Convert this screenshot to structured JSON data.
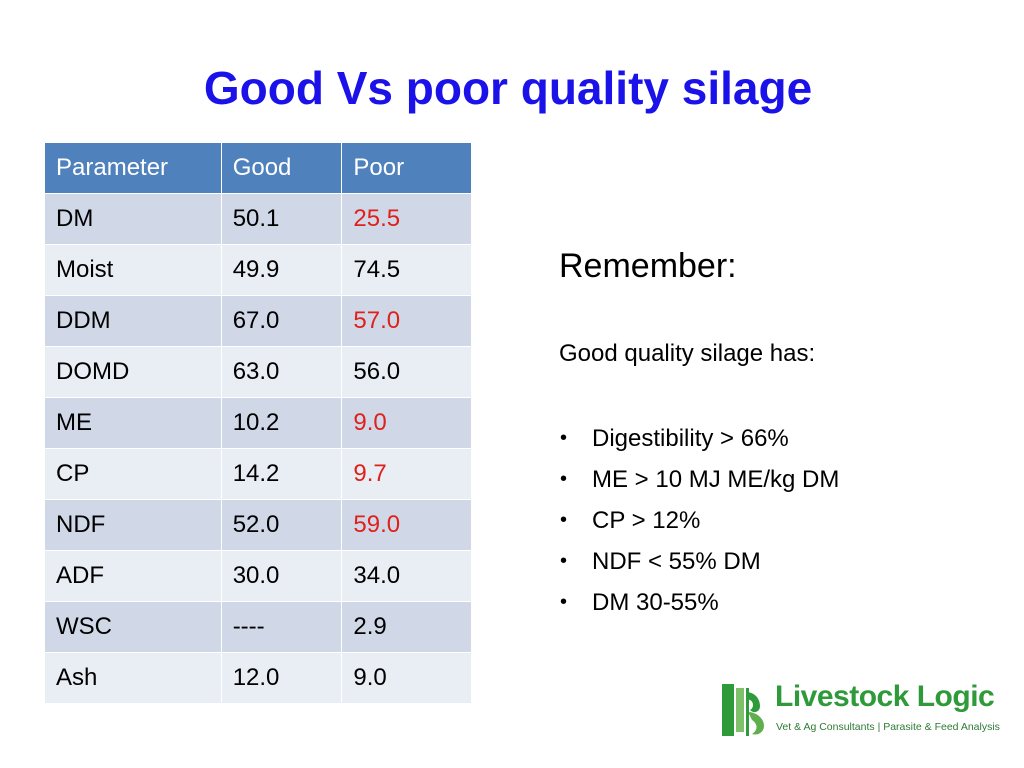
{
  "slide": {
    "title": "Good Vs poor quality silage"
  },
  "table": {
    "headers": [
      "Parameter",
      "Good",
      "Poor"
    ],
    "rows": [
      {
        "parameter": "DM",
        "good": "50.1",
        "poor": "25.5",
        "poor_highlight": true
      },
      {
        "parameter": "Moist",
        "good": "49.9",
        "poor": "74.5",
        "poor_highlight": false
      },
      {
        "parameter": "DDM",
        "good": "67.0",
        "poor": "57.0",
        "poor_highlight": true
      },
      {
        "parameter": "DOMD",
        "good": "63.0",
        "poor": "56.0",
        "poor_highlight": false
      },
      {
        "parameter": "ME",
        "good": "10.2",
        "poor": "9.0",
        "poor_highlight": true
      },
      {
        "parameter": "CP",
        "good": "14.2",
        "poor": "9.7",
        "poor_highlight": true
      },
      {
        "parameter": "NDF",
        "good": "52.0",
        "poor": "59.0",
        "poor_highlight": true
      },
      {
        "parameter": "ADF",
        "good": "30.0",
        "poor": "34.0",
        "poor_highlight": false
      },
      {
        "parameter": "WSC",
        "good": "----",
        "poor": "2.9",
        "poor_highlight": false
      },
      {
        "parameter": "Ash",
        "good": "12.0",
        "poor": "9.0",
        "poor_highlight": false
      }
    ]
  },
  "notes": {
    "heading": "Remember:",
    "intro": "Good quality silage has:",
    "bullets": [
      "Digestibility > 66%",
      "ME > 10 MJ ME/kg DM",
      "CP > 12%",
      "NDF < 55% DM",
      "DM 30-55%"
    ]
  },
  "logo": {
    "name": "Livestock Logic",
    "tagline": "Vet & Ag Consultants | Parasite & Feed Analysis"
  },
  "colors": {
    "title": "#1a12e8",
    "header_bg": "#4f81bd",
    "row_odd": "#d0d8e8",
    "row_even": "#e9edf4",
    "highlight": "#e0201a",
    "logo_green": "#2f9a3a"
  }
}
